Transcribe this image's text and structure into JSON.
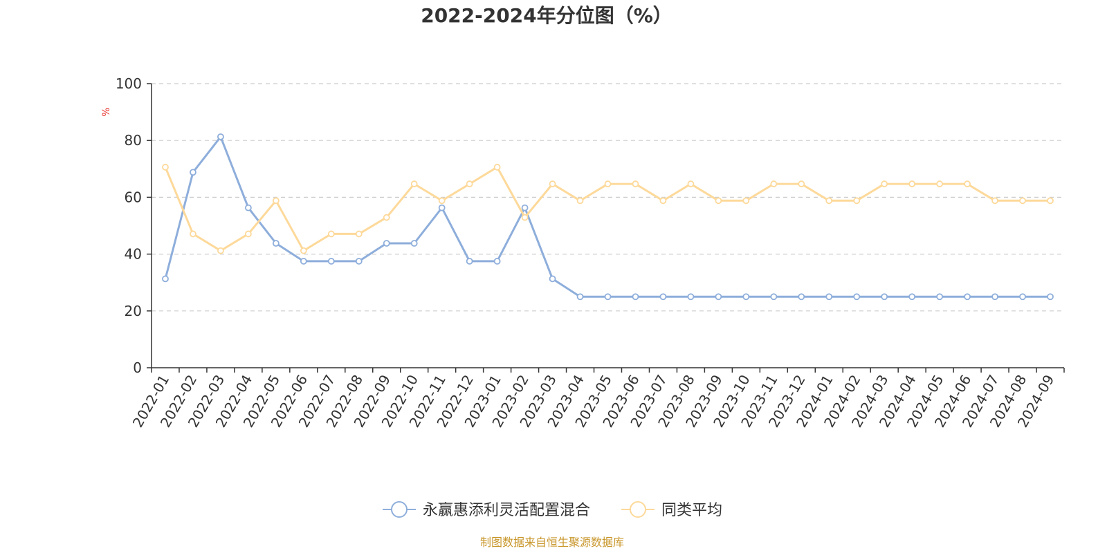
{
  "colors": {
    "fund": "#8eaedb",
    "avg": "#fdd99a",
    "axis": "#333333",
    "grid": "#cccccc",
    "unit": "#e8312b",
    "source": "#c8962a"
  },
  "chart_data": {
    "type": "line",
    "title": "2022-2024年分位图（%）",
    "ylabel": "%",
    "xlabel": "",
    "ylim": [
      0,
      100
    ],
    "yticks": [
      0,
      20,
      40,
      60,
      80,
      100
    ],
    "grid": true,
    "legend_position": "bottom",
    "categories": [
      "2022-01",
      "2022-02",
      "2022-03",
      "2022-04",
      "2022-05",
      "2022-06",
      "2022-07",
      "2022-08",
      "2022-09",
      "2022-10",
      "2022-11",
      "2022-12",
      "2023-01",
      "2023-02",
      "2023-03",
      "2023-04",
      "2023-05",
      "2023-06",
      "2023-07",
      "2023-08",
      "2023-09",
      "2023-10",
      "2023-11",
      "2023-12",
      "2024-01",
      "2024-02",
      "2024-03",
      "2024-04",
      "2024-05",
      "2024-06",
      "2024-07",
      "2024-08",
      "2024-09"
    ],
    "series": [
      {
        "name": "永赢惠添利灵活配置混合",
        "color_key": "fund",
        "values": [
          31.3,
          68.8,
          81.3,
          56.3,
          43.8,
          37.5,
          37.5,
          37.5,
          43.8,
          43.8,
          56.3,
          37.5,
          37.5,
          56.3,
          31.3,
          25.0,
          25.0,
          25.0,
          25.0,
          25.0,
          25.0,
          25.0,
          25.0,
          25.0,
          25.0,
          25.0,
          25.0,
          25.0,
          25.0,
          25.0,
          25.0,
          25.0,
          25.0
        ]
      },
      {
        "name": "同类平均",
        "color_key": "avg",
        "values": [
          70.6,
          47.1,
          41.2,
          47.1,
          58.8,
          41.2,
          47.1,
          47.1,
          52.9,
          64.7,
          58.8,
          64.7,
          70.6,
          52.9,
          64.7,
          58.8,
          64.7,
          64.7,
          58.8,
          64.7,
          58.8,
          58.8,
          64.7,
          64.7,
          58.8,
          58.8,
          64.7,
          64.7,
          64.7,
          64.7,
          58.8,
          58.8,
          58.8
        ]
      }
    ],
    "source": "制图数据来自恒生聚源数据库"
  }
}
